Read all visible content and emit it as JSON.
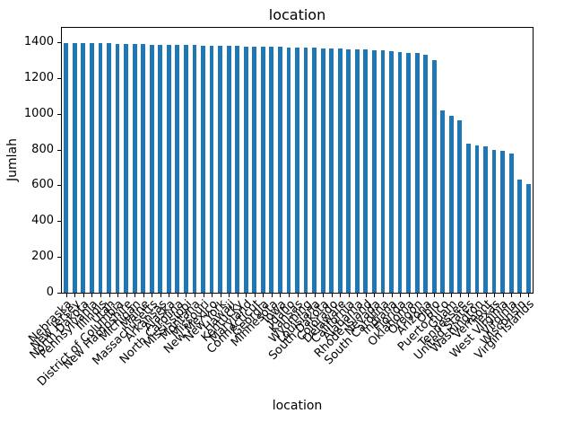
{
  "chart_data": {
    "type": "bar",
    "title": "location",
    "xlabel": "location",
    "ylabel": "Jumlah",
    "bar_color": "#1f77b4",
    "axis_color": "#000000",
    "grid": false,
    "legend": false,
    "ylim": [
      0,
      1480
    ],
    "yticks": [
      0,
      200,
      400,
      600,
      800,
      1000,
      1200,
      1400
    ],
    "categories": [
      "Nebraska",
      "New Jersey",
      "North Dakota",
      "Pennsylvania",
      "Illinois",
      "Utah",
      "District of Columbia",
      "New Hampshire",
      "Michigan",
      "Maine",
      "Massachusetts",
      "Arkansas",
      "Alaska",
      "North Carolina",
      "Mississippi",
      "Montana",
      "Missouri",
      "New Mexico",
      "New York",
      "Hawaii",
      "Kentucky",
      "Maryland",
      "Connecticut",
      "Georgia",
      "Minnesota",
      "Iowa",
      "Idaho",
      "Kansas",
      "Wyoming",
      "Louisiana",
      "South Dakota",
      "Colorado",
      "Delaware",
      "California",
      "Alabama",
      "Rhode Island",
      "Nevada",
      "South Carolina",
      "Indiana",
      "Florida",
      "Oklahoma",
      "Oregon",
      "Arizona",
      "Ohio",
      "Puerto Rico",
      "Guam",
      "Tennessee",
      "United States",
      "Washington",
      "Vermont",
      "Texas",
      "West Virginia",
      "Virginia",
      "Wisconsin",
      "Virgin Islands"
    ],
    "values": [
      1397,
      1396,
      1396,
      1395,
      1395,
      1394,
      1391,
      1390,
      1389,
      1388,
      1387,
      1386,
      1385,
      1385,
      1384,
      1383,
      1382,
      1381,
      1380,
      1379,
      1378,
      1377,
      1376,
      1375,
      1374,
      1373,
      1372,
      1371,
      1369,
      1368,
      1367,
      1366,
      1364,
      1362,
      1360,
      1358,
      1356,
      1354,
      1350,
      1346,
      1342,
      1338,
      1330,
      1300,
      1020,
      990,
      965,
      835,
      822,
      818,
      800,
      795,
      780,
      633,
      605
    ]
  }
}
